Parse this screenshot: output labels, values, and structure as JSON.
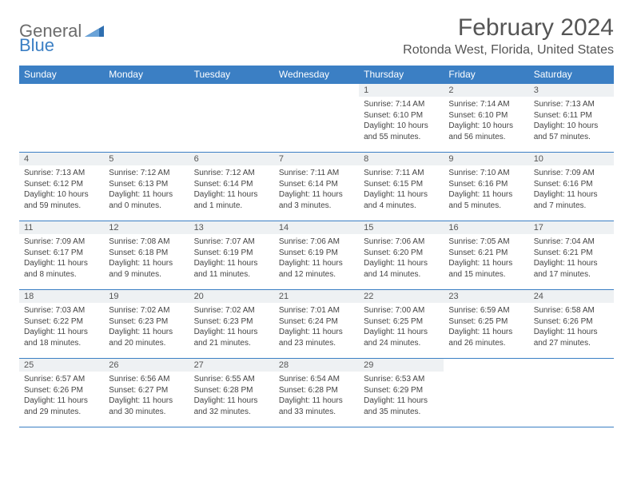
{
  "logo": {
    "general": "General",
    "blue": "Blue"
  },
  "title": "February 2024",
  "location": "Rotonda West, Florida, United States",
  "colors": {
    "header_bg": "#3b7fc4",
    "header_text": "#ffffff",
    "daynum_bg": "#eef1f3",
    "rule": "#3b7fc4",
    "body_text": "#444444",
    "title_text": "#555555"
  },
  "weekdays": [
    "Sunday",
    "Monday",
    "Tuesday",
    "Wednesday",
    "Thursday",
    "Friday",
    "Saturday"
  ],
  "weeks": [
    [
      null,
      null,
      null,
      null,
      {
        "n": "1",
        "sr": "Sunrise: 7:14 AM",
        "ss": "Sunset: 6:10 PM",
        "dl": "Daylight: 10 hours and 55 minutes."
      },
      {
        "n": "2",
        "sr": "Sunrise: 7:14 AM",
        "ss": "Sunset: 6:10 PM",
        "dl": "Daylight: 10 hours and 56 minutes."
      },
      {
        "n": "3",
        "sr": "Sunrise: 7:13 AM",
        "ss": "Sunset: 6:11 PM",
        "dl": "Daylight: 10 hours and 57 minutes."
      }
    ],
    [
      {
        "n": "4",
        "sr": "Sunrise: 7:13 AM",
        "ss": "Sunset: 6:12 PM",
        "dl": "Daylight: 10 hours and 59 minutes."
      },
      {
        "n": "5",
        "sr": "Sunrise: 7:12 AM",
        "ss": "Sunset: 6:13 PM",
        "dl": "Daylight: 11 hours and 0 minutes."
      },
      {
        "n": "6",
        "sr": "Sunrise: 7:12 AM",
        "ss": "Sunset: 6:14 PM",
        "dl": "Daylight: 11 hours and 1 minute."
      },
      {
        "n": "7",
        "sr": "Sunrise: 7:11 AM",
        "ss": "Sunset: 6:14 PM",
        "dl": "Daylight: 11 hours and 3 minutes."
      },
      {
        "n": "8",
        "sr": "Sunrise: 7:11 AM",
        "ss": "Sunset: 6:15 PM",
        "dl": "Daylight: 11 hours and 4 minutes."
      },
      {
        "n": "9",
        "sr": "Sunrise: 7:10 AM",
        "ss": "Sunset: 6:16 PM",
        "dl": "Daylight: 11 hours and 5 minutes."
      },
      {
        "n": "10",
        "sr": "Sunrise: 7:09 AM",
        "ss": "Sunset: 6:16 PM",
        "dl": "Daylight: 11 hours and 7 minutes."
      }
    ],
    [
      {
        "n": "11",
        "sr": "Sunrise: 7:09 AM",
        "ss": "Sunset: 6:17 PM",
        "dl": "Daylight: 11 hours and 8 minutes."
      },
      {
        "n": "12",
        "sr": "Sunrise: 7:08 AM",
        "ss": "Sunset: 6:18 PM",
        "dl": "Daylight: 11 hours and 9 minutes."
      },
      {
        "n": "13",
        "sr": "Sunrise: 7:07 AM",
        "ss": "Sunset: 6:19 PM",
        "dl": "Daylight: 11 hours and 11 minutes."
      },
      {
        "n": "14",
        "sr": "Sunrise: 7:06 AM",
        "ss": "Sunset: 6:19 PM",
        "dl": "Daylight: 11 hours and 12 minutes."
      },
      {
        "n": "15",
        "sr": "Sunrise: 7:06 AM",
        "ss": "Sunset: 6:20 PM",
        "dl": "Daylight: 11 hours and 14 minutes."
      },
      {
        "n": "16",
        "sr": "Sunrise: 7:05 AM",
        "ss": "Sunset: 6:21 PM",
        "dl": "Daylight: 11 hours and 15 minutes."
      },
      {
        "n": "17",
        "sr": "Sunrise: 7:04 AM",
        "ss": "Sunset: 6:21 PM",
        "dl": "Daylight: 11 hours and 17 minutes."
      }
    ],
    [
      {
        "n": "18",
        "sr": "Sunrise: 7:03 AM",
        "ss": "Sunset: 6:22 PM",
        "dl": "Daylight: 11 hours and 18 minutes."
      },
      {
        "n": "19",
        "sr": "Sunrise: 7:02 AM",
        "ss": "Sunset: 6:23 PM",
        "dl": "Daylight: 11 hours and 20 minutes."
      },
      {
        "n": "20",
        "sr": "Sunrise: 7:02 AM",
        "ss": "Sunset: 6:23 PM",
        "dl": "Daylight: 11 hours and 21 minutes."
      },
      {
        "n": "21",
        "sr": "Sunrise: 7:01 AM",
        "ss": "Sunset: 6:24 PM",
        "dl": "Daylight: 11 hours and 23 minutes."
      },
      {
        "n": "22",
        "sr": "Sunrise: 7:00 AM",
        "ss": "Sunset: 6:25 PM",
        "dl": "Daylight: 11 hours and 24 minutes."
      },
      {
        "n": "23",
        "sr": "Sunrise: 6:59 AM",
        "ss": "Sunset: 6:25 PM",
        "dl": "Daylight: 11 hours and 26 minutes."
      },
      {
        "n": "24",
        "sr": "Sunrise: 6:58 AM",
        "ss": "Sunset: 6:26 PM",
        "dl": "Daylight: 11 hours and 27 minutes."
      }
    ],
    [
      {
        "n": "25",
        "sr": "Sunrise: 6:57 AM",
        "ss": "Sunset: 6:26 PM",
        "dl": "Daylight: 11 hours and 29 minutes."
      },
      {
        "n": "26",
        "sr": "Sunrise: 6:56 AM",
        "ss": "Sunset: 6:27 PM",
        "dl": "Daylight: 11 hours and 30 minutes."
      },
      {
        "n": "27",
        "sr": "Sunrise: 6:55 AM",
        "ss": "Sunset: 6:28 PM",
        "dl": "Daylight: 11 hours and 32 minutes."
      },
      {
        "n": "28",
        "sr": "Sunrise: 6:54 AM",
        "ss": "Sunset: 6:28 PM",
        "dl": "Daylight: 11 hours and 33 minutes."
      },
      {
        "n": "29",
        "sr": "Sunrise: 6:53 AM",
        "ss": "Sunset: 6:29 PM",
        "dl": "Daylight: 11 hours and 35 minutes."
      },
      null,
      null
    ]
  ]
}
